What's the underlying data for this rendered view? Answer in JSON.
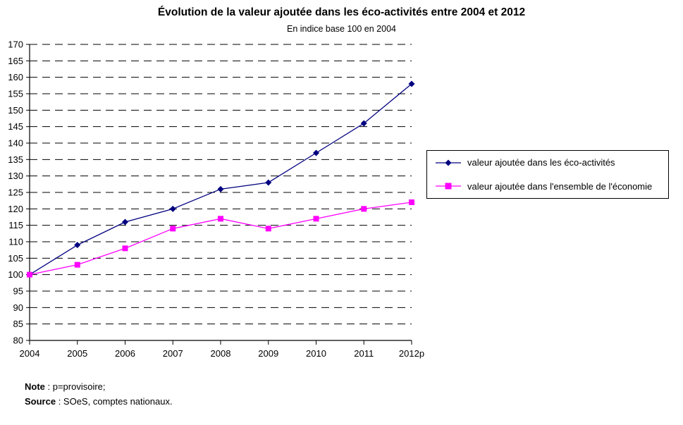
{
  "chart": {
    "title": "Évolution de la valeur ajoutée dans les éco-activités entre 2004 et 2012",
    "subtitle": "En indice base 100 en 2004"
  },
  "chart_data": {
    "type": "line",
    "categories": [
      "2004",
      "2005",
      "2006",
      "2007",
      "2008",
      "2009",
      "2010",
      "2011",
      "2012p"
    ],
    "series": [
      {
        "name": "valeur ajoutée dans les éco-activités",
        "color": "#000080",
        "marker": "diamond",
        "values": [
          100,
          109,
          116,
          120,
          126,
          128,
          137,
          146,
          158
        ]
      },
      {
        "name": "valeur ajoutée dans l'ensemble de l'économie",
        "color": "#FF00FF",
        "marker": "square",
        "values": [
          100,
          103,
          108,
          114,
          117,
          114,
          117,
          120,
          122
        ]
      }
    ],
    "ylim": [
      80,
      170
    ],
    "ytick_step": 5,
    "grid": "horizontal-dashed",
    "legend_position": "right",
    "axis_color": "#000000"
  },
  "notes": [
    {
      "label": "Note",
      "text": " : p=provisoire;"
    },
    {
      "label": "Source",
      "text": " : SOeS, comptes nationaux."
    }
  ]
}
